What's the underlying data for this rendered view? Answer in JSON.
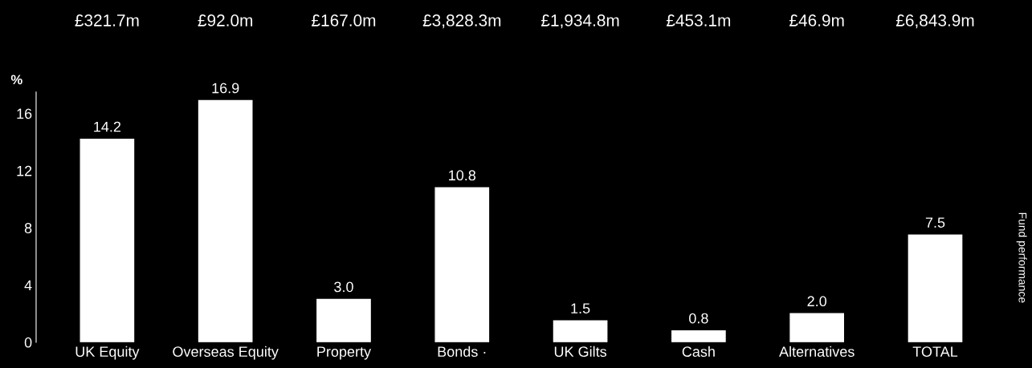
{
  "chart_data": {
    "type": "bar",
    "ylabel": "%",
    "categories": [
      "UK Equity",
      "Overseas Equity",
      "Property",
      "Bonds ·",
      "UK Gilts",
      "Cash",
      "Alternatives",
      "TOTAL"
    ],
    "values": [
      14.2,
      16.9,
      3.0,
      10.8,
      1.5,
      0.8,
      2.0,
      7.5
    ],
    "color": "#ffffff",
    "value_labels": [
      "14.2",
      "16.9",
      "3.0",
      "10.8",
      "1.5",
      "0.8",
      "2.0",
      "7.5"
    ],
    "ylim": [
      0,
      17.5
    ],
    "yticks": [
      0,
      4,
      8,
      12,
      16
    ],
    "grid": false,
    "legend": false,
    "annotations": [
      "£321.7m",
      "£92.0m",
      "£167.0m",
      "£3,828.3m",
      "£1,934.8m",
      "£453.1m",
      "£46.9m",
      "£6,843.9m",
      "Fund performance"
    ]
  }
}
